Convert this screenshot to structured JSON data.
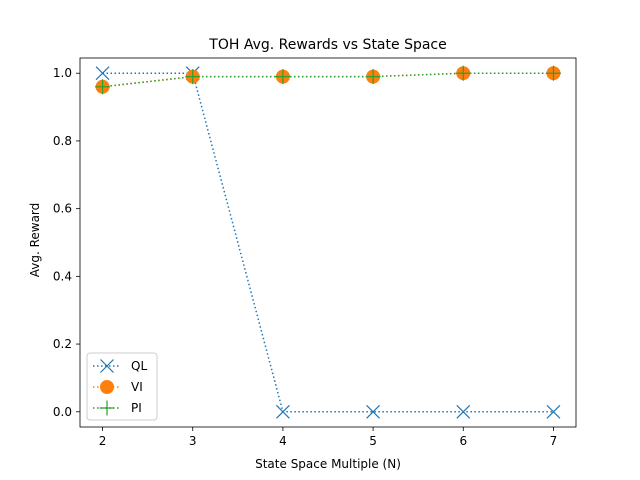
{
  "chart_data": {
    "type": "line",
    "title": "TOH Avg. Rewards vs State Space",
    "xlabel": "State Space Multiple (N)",
    "ylabel": "Avg. Reward",
    "x": [
      2,
      3,
      4,
      5,
      6,
      7
    ],
    "xlim": [
      1.75,
      7.25
    ],
    "ylim": [
      -0.045,
      1.045
    ],
    "xticks": [
      2,
      3,
      4,
      5,
      6,
      7
    ],
    "yticks": [
      0.0,
      0.2,
      0.4,
      0.6,
      0.8,
      1.0
    ],
    "ytick_labels": [
      "0.0",
      "0.2",
      "0.4",
      "0.6",
      "0.8",
      "1.0"
    ],
    "grid": false,
    "legend_placement": "lower-left",
    "series": [
      {
        "name": "QL",
        "values": [
          1.0,
          1.0,
          0.0,
          0.0,
          0.0,
          0.0
        ],
        "color": "#1f77b4",
        "marker": "x",
        "linestyle": "dotted"
      },
      {
        "name": "VI",
        "values": [
          0.96,
          0.99,
          0.99,
          0.99,
          1.0,
          1.0
        ],
        "color": "#ff7f0e",
        "marker": "o",
        "linestyle": "dotted"
      },
      {
        "name": "PI",
        "values": [
          0.96,
          0.99,
          0.99,
          0.99,
          1.0,
          1.0
        ],
        "color": "#2ca02c",
        "marker": "+",
        "linestyle": "dotted"
      }
    ]
  }
}
